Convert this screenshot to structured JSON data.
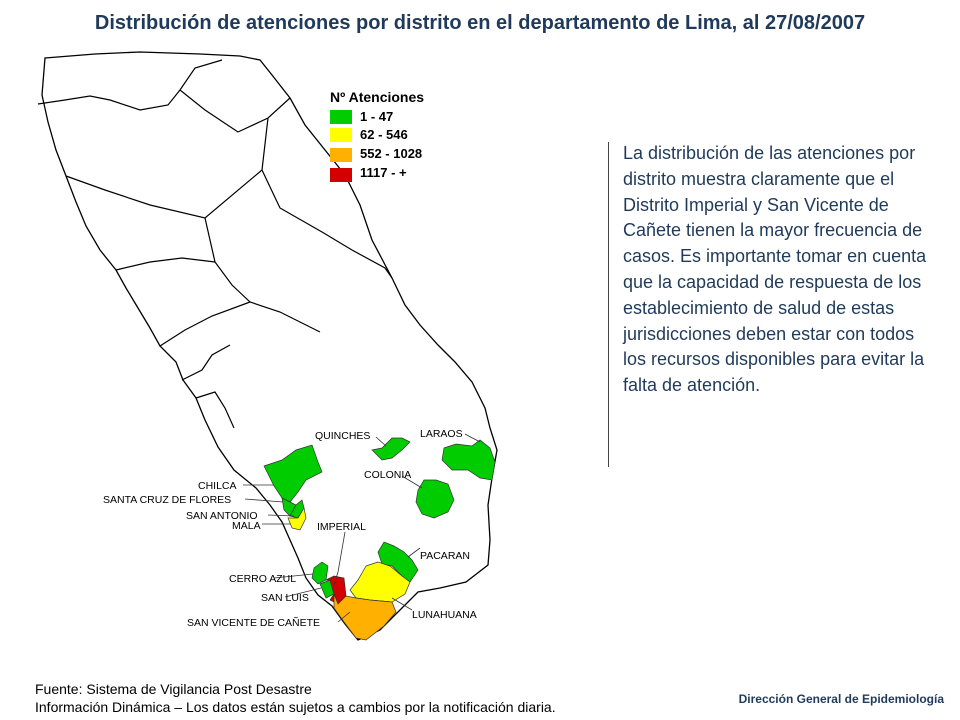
{
  "title": "Distribución de atenciones por distrito en el departamento de Lima, al 27/08/2007",
  "legend": {
    "title": "Nº Atenciones",
    "items": [
      {
        "label": "1 - 47",
        "color": "#00cc00"
      },
      {
        "label": "62 - 546",
        "color": "#ffff00"
      },
      {
        "label": "552 - 1028",
        "color": "#ffb000"
      },
      {
        "label": "1117 - +",
        "color": "#d40000"
      }
    ]
  },
  "districts": [
    {
      "name": "QUINCHES",
      "class": "1 - 47",
      "color": "#00cc00"
    },
    {
      "name": "LARAOS",
      "class": "1 - 47",
      "color": "#00cc00"
    },
    {
      "name": "COLONIA",
      "class": "1 - 47",
      "color": "#00cc00"
    },
    {
      "name": "CHILCA",
      "class": "1 - 47",
      "color": "#00cc00"
    },
    {
      "name": "SANTA CRUZ DE FLORES",
      "class": "1 - 47",
      "color": "#00cc00"
    },
    {
      "name": "SAN ANTONIO",
      "class": "1 - 47",
      "color": "#00cc00"
    },
    {
      "name": "MALA",
      "class": "62 - 546",
      "color": "#ffff00"
    },
    {
      "name": "IMPERIAL",
      "class": "1117 - +",
      "color": "#d40000"
    },
    {
      "name": "PACARAN",
      "class": "1 - 47",
      "color": "#00cc00"
    },
    {
      "name": "CERRO AZUL",
      "class": "1 - 47",
      "color": "#00cc00"
    },
    {
      "name": "SAN LUIS",
      "class": "1 - 47",
      "color": "#00cc00"
    },
    {
      "name": "LUNAHUANA",
      "class": "62 - 546",
      "color": "#ffff00"
    },
    {
      "name": "SAN VICENTE DE CAÑETE",
      "class": "552 - 1028",
      "color": "#ffb000"
    }
  ],
  "description": "La distribución de las atenciones por distrito muestra claramente que el Distrito Imperial y San Vicente de Cañete tienen la mayor frecuencia de casos. Es importante tomar en cuenta que la capacidad de respuesta de los establecimiento de salud de estas jurisdicciones deben estar con todos los recursos disponibles para evitar la falta de atención.",
  "source": {
    "line1": "Fuente: Sistema de Vigilancia Post Desastre",
    "line2": "Información Dinámica – Los datos están sujetos a cambios por la notificación diaria."
  },
  "agency": "Dirección General de Epidemiología"
}
